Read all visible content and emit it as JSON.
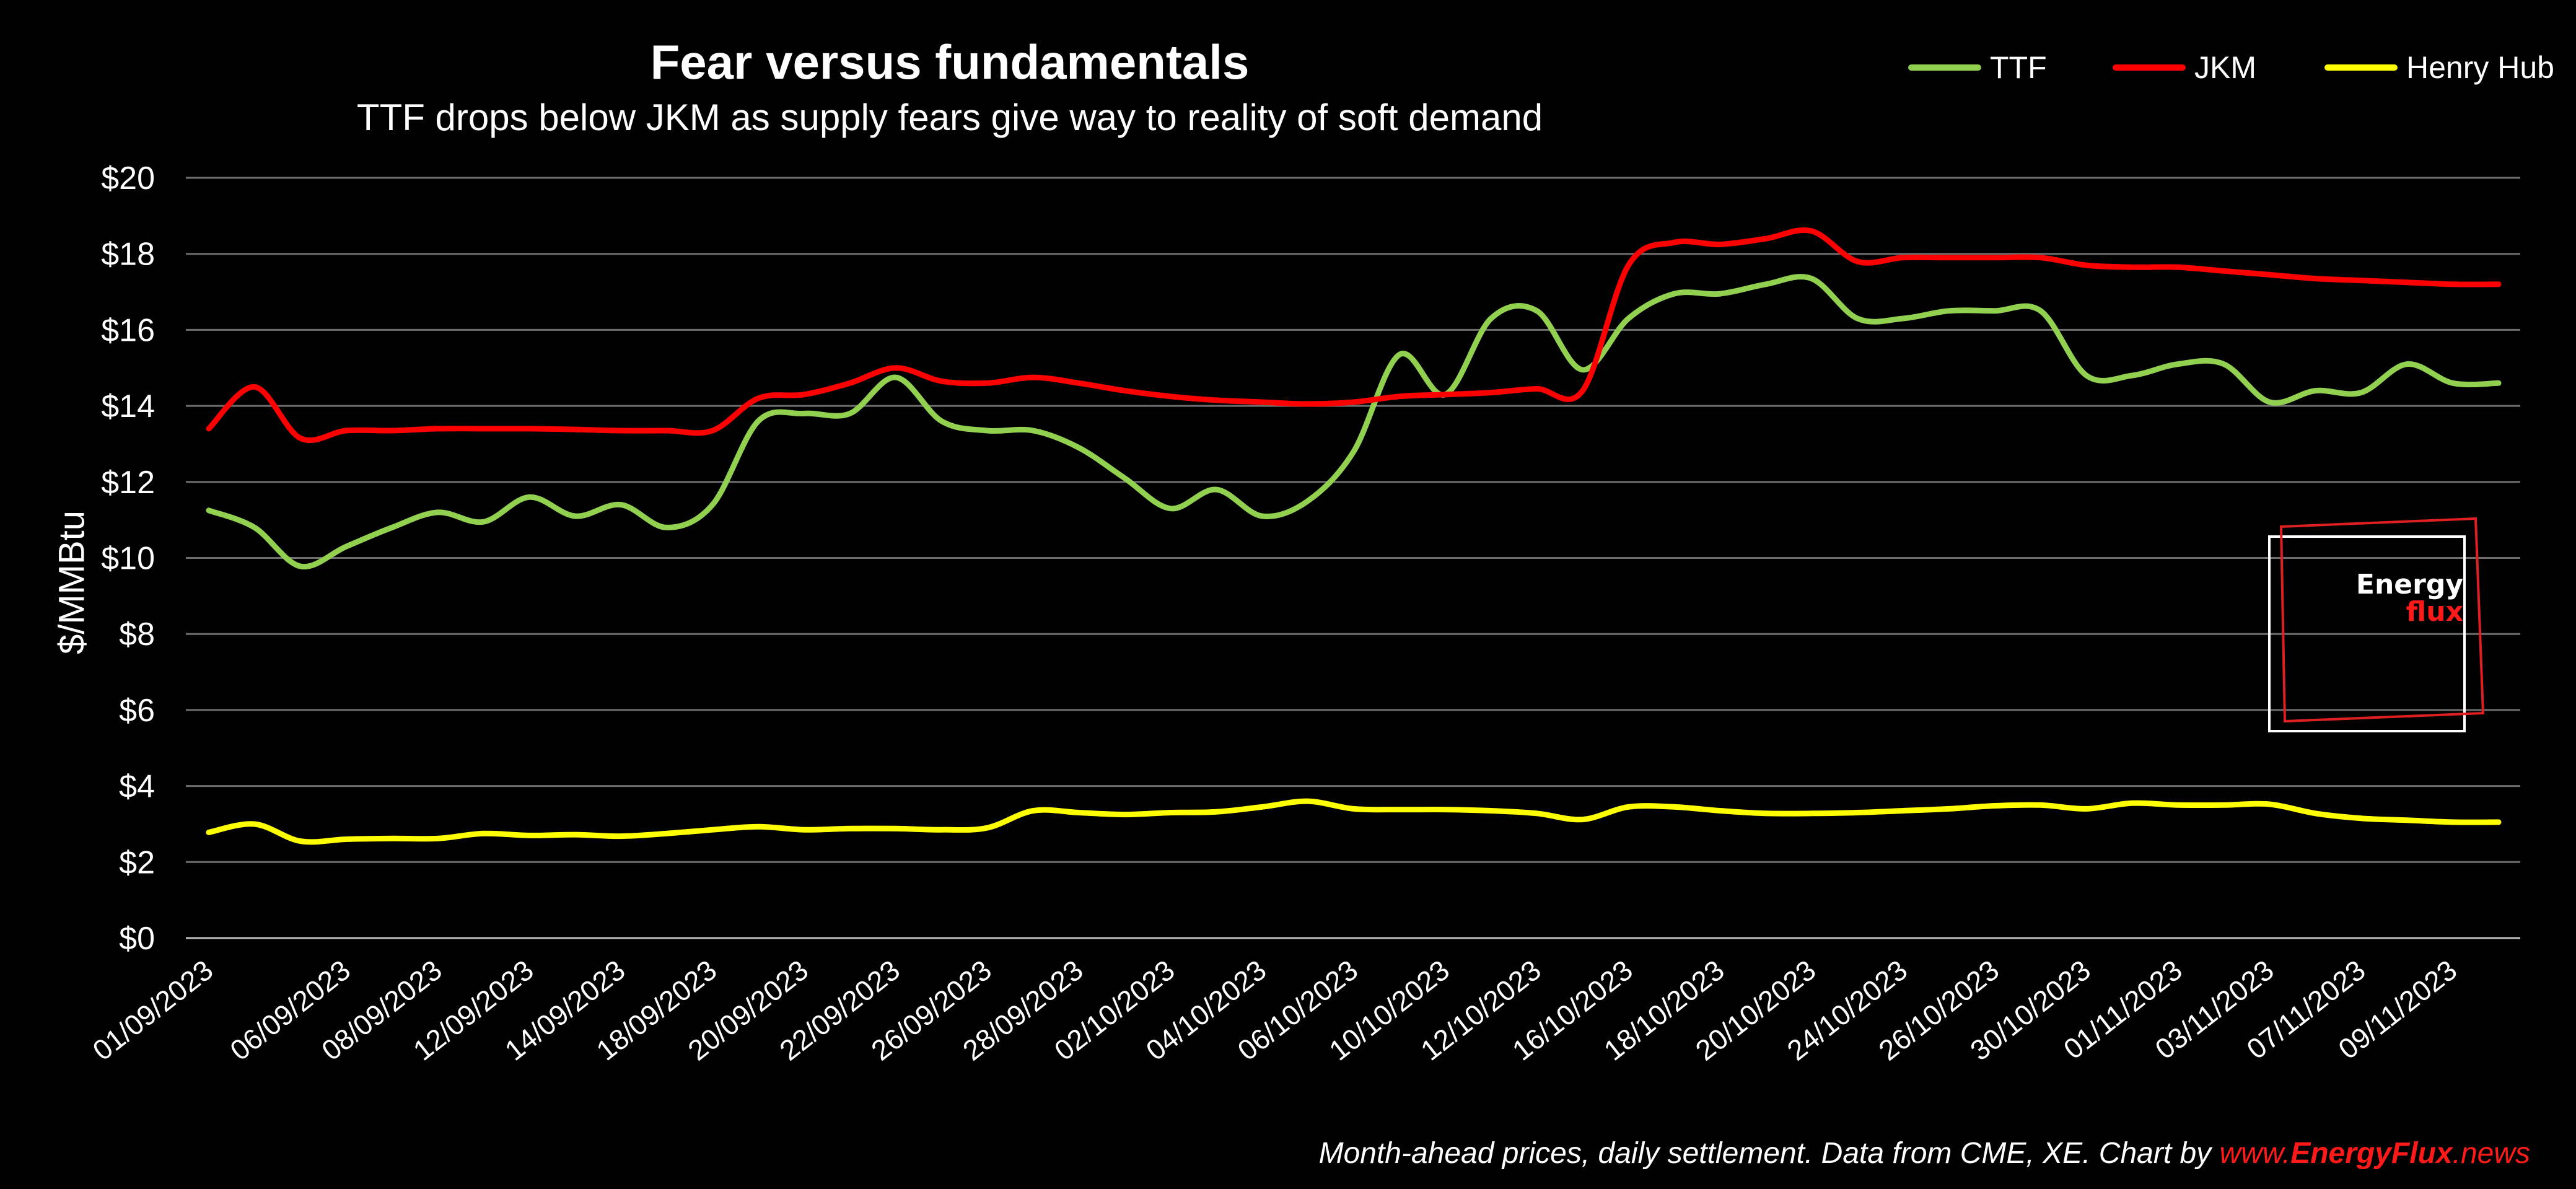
{
  "chart_data": {
    "type": "line",
    "title": "Fear versus fundamentals",
    "subtitle": "TTF drops below JKM as supply fears give way to reality of soft demand",
    "ylabel": "$/MMBtu",
    "xlabel": "",
    "ylim": [
      0,
      20
    ],
    "yticks": [
      "$0",
      "$2",
      "$4",
      "$6",
      "$8",
      "$10",
      "$12",
      "$14",
      "$16",
      "$18",
      "$20"
    ],
    "grid": true,
    "legend_position": "top-right",
    "x_tick_labels": [
      "01/09/2023",
      "06/09/2023",
      "08/09/2023",
      "12/09/2023",
      "14/09/2023",
      "18/09/2023",
      "20/09/2023",
      "22/09/2023",
      "26/09/2023",
      "28/09/2023",
      "02/10/2023",
      "04/10/2023",
      "06/10/2023",
      "10/10/2023",
      "12/10/2023",
      "16/10/2023",
      "18/10/2023",
      "20/10/2023",
      "24/10/2023",
      "26/10/2023",
      "30/10/2023",
      "01/11/2023",
      "03/11/2023",
      "07/11/2023",
      "09/11/2023"
    ],
    "x": [
      "01/09/2023",
      "04/09/2023",
      "05/09/2023",
      "06/09/2023",
      "07/09/2023",
      "08/09/2023",
      "11/09/2023",
      "12/09/2023",
      "13/09/2023",
      "14/09/2023",
      "15/09/2023",
      "18/09/2023",
      "19/09/2023",
      "20/09/2023",
      "21/09/2023",
      "22/09/2023",
      "25/09/2023",
      "26/09/2023",
      "27/09/2023",
      "28/09/2023",
      "29/09/2023",
      "02/10/2023",
      "03/10/2023",
      "04/10/2023",
      "05/10/2023",
      "06/10/2023",
      "09/10/2023",
      "10/10/2023",
      "11/10/2023",
      "12/10/2023",
      "13/10/2023",
      "16/10/2023",
      "17/10/2023",
      "18/10/2023",
      "19/10/2023",
      "20/10/2023",
      "23/10/2023",
      "24/10/2023",
      "25/10/2023",
      "26/10/2023",
      "27/10/2023",
      "30/10/2023",
      "31/10/2023",
      "01/11/2023",
      "02/11/2023",
      "03/11/2023",
      "06/11/2023",
      "07/11/2023",
      "08/11/2023",
      "09/11/2023",
      "10/11/2023"
    ],
    "series": [
      {
        "name": "TTF",
        "color": "#92d050",
        "values": [
          11.25,
          10.8,
          9.78,
          10.3,
          10.8,
          11.2,
          10.95,
          11.6,
          11.1,
          11.4,
          10.8,
          11.4,
          13.6,
          13.8,
          13.8,
          14.75,
          13.6,
          13.35,
          13.35,
          12.9,
          12.1,
          11.3,
          11.8,
          11.1,
          11.5,
          12.8,
          15.35,
          14.3,
          16.3,
          16.5,
          14.95,
          16.3,
          16.95,
          16.95,
          17.2,
          17.35,
          16.3,
          16.3,
          16.5,
          16.5,
          16.5,
          14.8,
          14.8,
          15.1,
          15.1,
          14.1,
          14.4,
          14.35,
          15.1,
          14.6,
          14.6
        ]
      },
      {
        "name": "JKM",
        "color": "#ff0000",
        "values": [
          13.4,
          14.5,
          13.15,
          13.35,
          13.35,
          13.4,
          13.4,
          13.4,
          13.38,
          13.35,
          13.35,
          13.35,
          14.2,
          14.3,
          14.6,
          15.0,
          14.65,
          14.6,
          14.75,
          14.6,
          14.4,
          14.25,
          14.15,
          14.1,
          14.05,
          14.1,
          14.25,
          14.3,
          14.35,
          14.45,
          14.4,
          17.7,
          18.3,
          18.25,
          18.4,
          18.6,
          17.8,
          17.9,
          17.9,
          17.9,
          17.9,
          17.7,
          17.65,
          17.65,
          17.55,
          17.45,
          17.35,
          17.3,
          17.25,
          17.2,
          17.2
        ]
      },
      {
        "name": "Henry Hub",
        "color": "#ffff00",
        "values": [
          2.78,
          3.0,
          2.55,
          2.6,
          2.62,
          2.62,
          2.75,
          2.7,
          2.72,
          2.68,
          2.75,
          2.85,
          2.93,
          2.85,
          2.88,
          2.88,
          2.85,
          2.9,
          3.35,
          3.3,
          3.25,
          3.3,
          3.32,
          3.45,
          3.6,
          3.4,
          3.38,
          3.38,
          3.35,
          3.28,
          3.12,
          3.45,
          3.45,
          3.35,
          3.28,
          3.28,
          3.3,
          3.35,
          3.4,
          3.48,
          3.5,
          3.4,
          3.55,
          3.5,
          3.5,
          3.52,
          3.28,
          3.15,
          3.1,
          3.05,
          3.05
        ]
      }
    ]
  },
  "footer": {
    "text": "Month-ahead prices, daily settlement. Data from CME, XE. Chart by ",
    "link_prefix": "www.",
    "link_brand": "EnergyFlux",
    "link_suffix": ".news"
  },
  "logo": {
    "line1": "Energy",
    "line2": "flux"
  }
}
